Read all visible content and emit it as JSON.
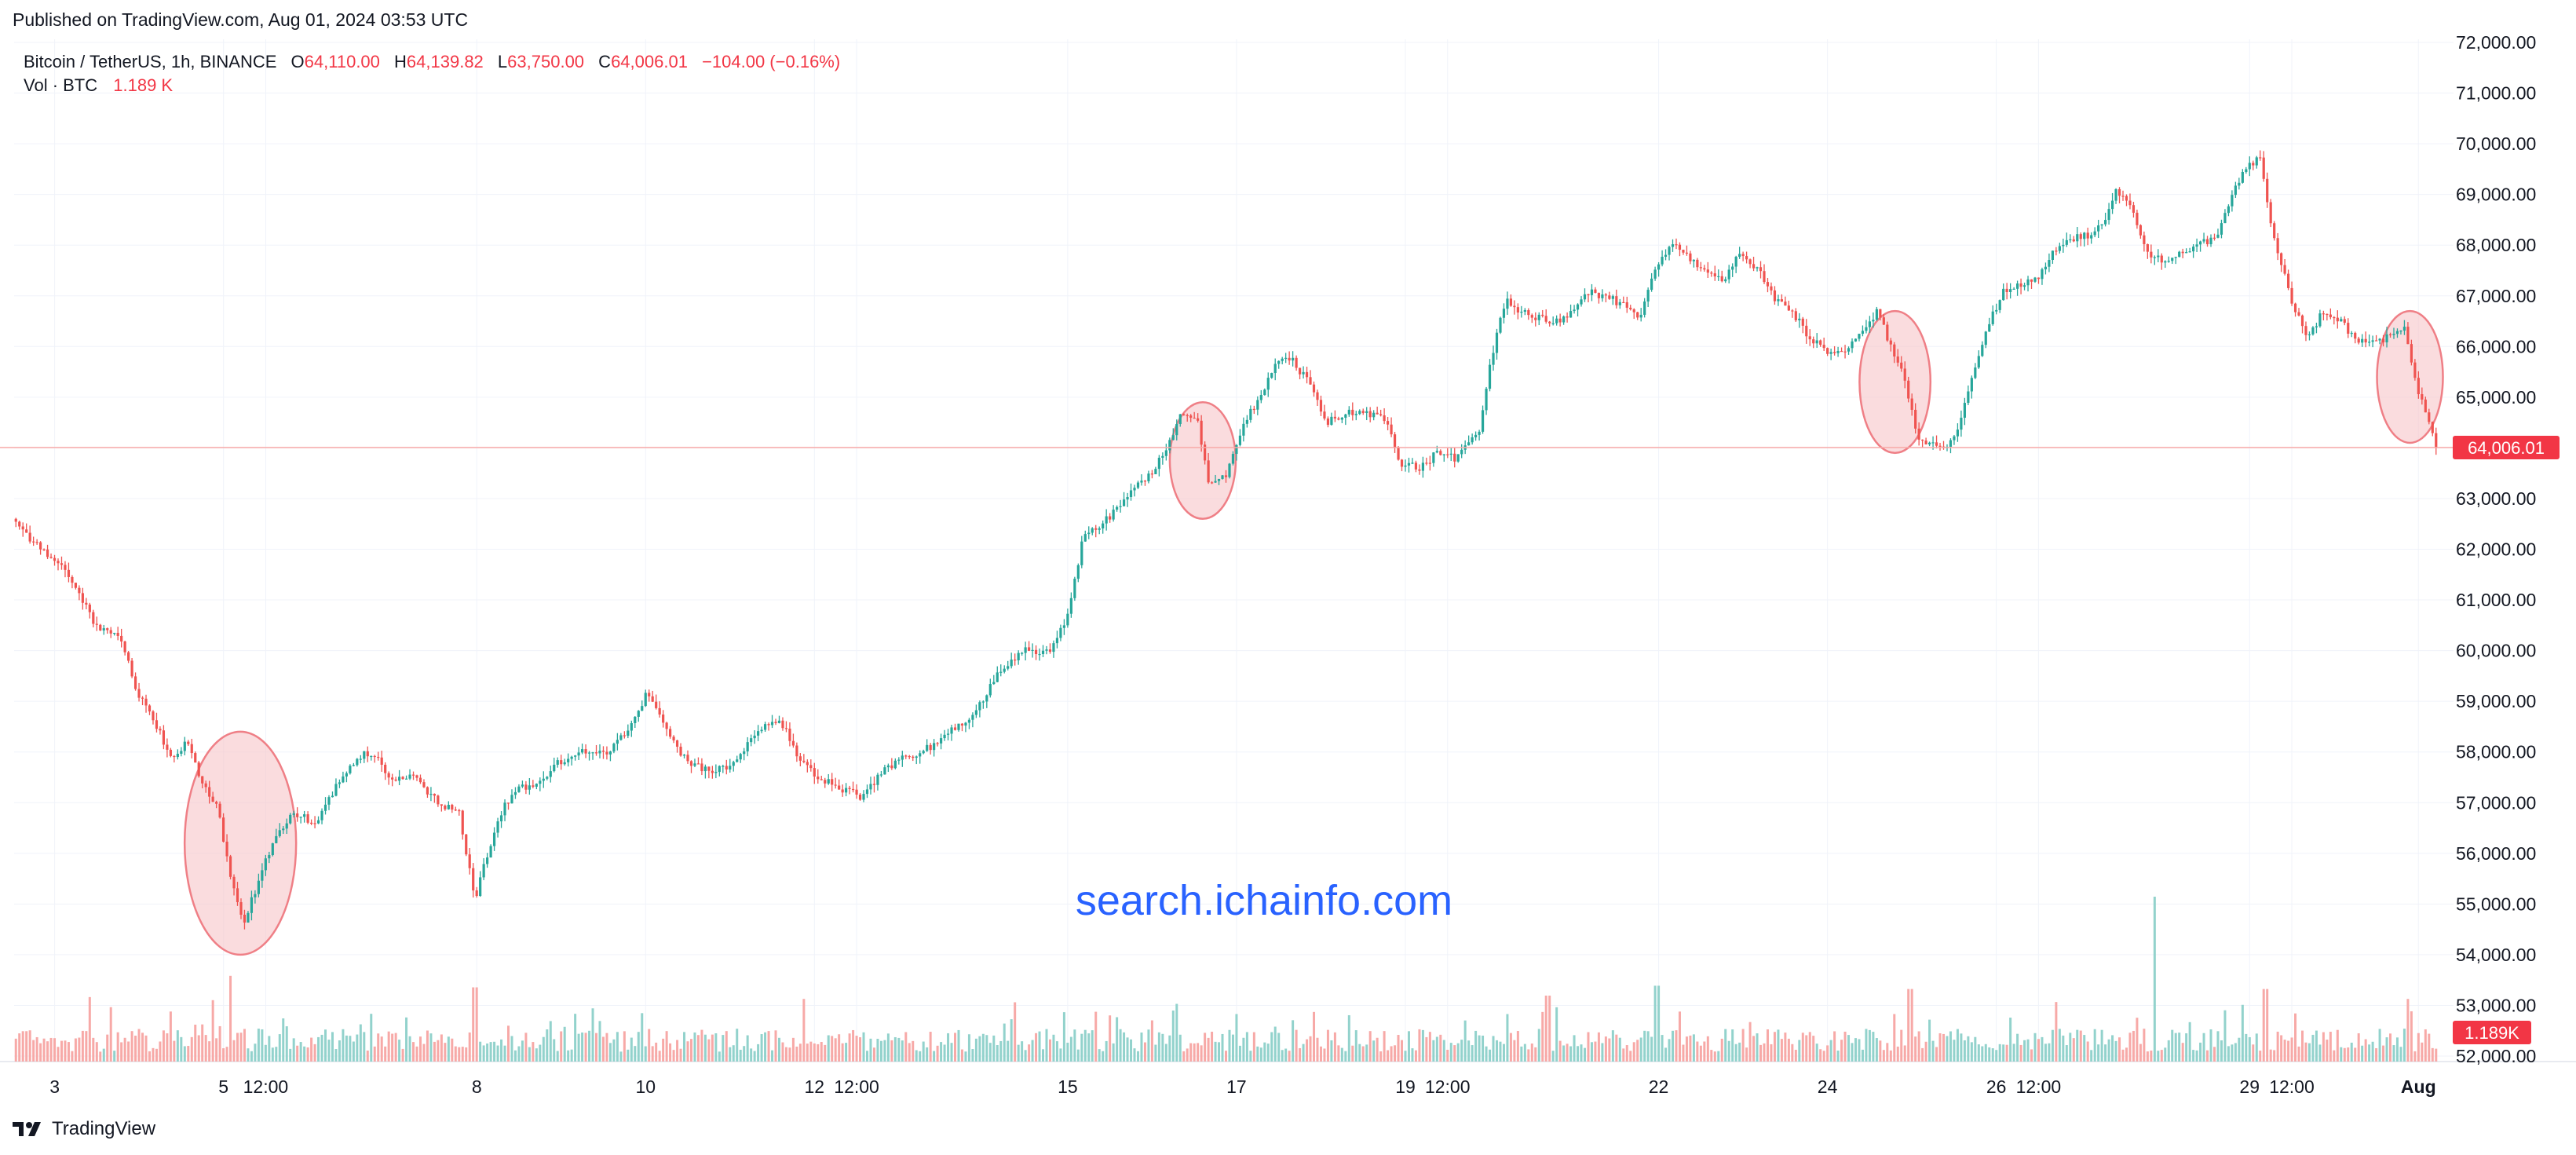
{
  "published": "Published on TradingView.com, Aug 01, 2024 03:53 UTC",
  "header": {
    "symbol": "Bitcoin / TetherUS, 1h, BINANCE",
    "o_label": "O",
    "o_value": "64,110.00",
    "h_label": "H",
    "h_value": "64,139.82",
    "l_label": "L",
    "l_value": "63,750.00",
    "c_label": "C",
    "c_value": "64,006.01",
    "change": "−104.00 (−0.16%)",
    "vol_label": "Vol · BTC",
    "vol_value": "1.189 K"
  },
  "watermark": "search.ichainfo.com",
  "footer": {
    "brand": "TradingView",
    "logo_icon": "tradingview-logo-icon"
  },
  "colors": {
    "up": "#26a69a",
    "down": "#ef5350",
    "vol_up": "#92d2cc",
    "vol_down": "#f7a9a7",
    "price_badge": "#f23645",
    "watermark": "#2962ff",
    "highlight": "#f7c5c8"
  },
  "chart_data": {
    "type": "candlestick",
    "symbol": "Bitcoin / TetherUS",
    "interval": "1h",
    "exchange": "BINANCE",
    "ylim": [
      52000,
      72000
    ],
    "y_ticks": [
      "52,000.00",
      "53,000.00",
      "54,000.00",
      "55,000.00",
      "56,000.00",
      "57,000.00",
      "58,000.00",
      "59,000.00",
      "60,000.00",
      "61,000.00",
      "62,000.00",
      "63,000.00",
      "64,000.00",
      "65,000.00",
      "66,000.00",
      "67,000.00",
      "68,000.00",
      "69,000.00",
      "70,000.00",
      "71,000.00",
      "72,000.00"
    ],
    "x_ticks": [
      {
        "label": "3",
        "t": 1.0
      },
      {
        "label": "5",
        "t": 3.0
      },
      {
        "label": "12:00",
        "t": 3.5
      },
      {
        "label": "8",
        "t": 6.0
      },
      {
        "label": "10",
        "t": 8.0
      },
      {
        "label": "12",
        "t": 10.0
      },
      {
        "label": "12:00",
        "t": 10.5
      },
      {
        "label": "15",
        "t": 13.0
      },
      {
        "label": "17",
        "t": 15.0
      },
      {
        "label": "19",
        "t": 17.0
      },
      {
        "label": "12:00",
        "t": 17.5
      },
      {
        "label": "22",
        "t": 20.0
      },
      {
        "label": "24",
        "t": 22.0
      },
      {
        "label": "26",
        "t": 24.0
      },
      {
        "label": "12:00",
        "t": 24.5
      },
      {
        "label": "29",
        "t": 27.0
      },
      {
        "label": "12:00",
        "t": 27.5
      },
      {
        "label": "Aug",
        "t": 29.0
      }
    ],
    "t_range": [
      0.52,
      29.23
    ],
    "t_unit": "days since Jul 2, 2024 00:00 UTC",
    "path": [
      [
        0.52,
        62600
      ],
      [
        0.8,
        62100
      ],
      [
        1.1,
        61700
      ],
      [
        1.3,
        61200
      ],
      [
        1.5,
        60500
      ],
      [
        1.8,
        60300
      ],
      [
        2.0,
        59200
      ],
      [
        2.2,
        58600
      ],
      [
        2.4,
        57900
      ],
      [
        2.6,
        58200
      ],
      [
        2.75,
        57500
      ],
      [
        2.95,
        56900
      ],
      [
        3.1,
        55600
      ],
      [
        3.25,
        54600
      ],
      [
        3.45,
        55500
      ],
      [
        3.6,
        56200
      ],
      [
        3.85,
        56800
      ],
      [
        4.1,
        56600
      ],
      [
        4.35,
        57300
      ],
      [
        4.6,
        57900
      ],
      [
        4.8,
        58000
      ],
      [
        5.0,
        57500
      ],
      [
        5.3,
        57500
      ],
      [
        5.6,
        56900
      ],
      [
        5.8,
        56900
      ],
      [
        6.0,
        55100
      ],
      [
        6.1,
        55700
      ],
      [
        6.3,
        56800
      ],
      [
        6.5,
        57300
      ],
      [
        6.7,
        57300
      ],
      [
        7.0,
        57800
      ],
      [
        7.3,
        58000
      ],
      [
        7.6,
        58000
      ],
      [
        7.8,
        58400
      ],
      [
        8.05,
        59200
      ],
      [
        8.3,
        58400
      ],
      [
        8.5,
        57800
      ],
      [
        8.8,
        57600
      ],
      [
        9.1,
        57800
      ],
      [
        9.3,
        58300
      ],
      [
        9.6,
        58700
      ],
      [
        9.8,
        58000
      ],
      [
        10.0,
        57600
      ],
      [
        10.3,
        57300
      ],
      [
        10.6,
        57100
      ],
      [
        10.8,
        57600
      ],
      [
        11.1,
        57900
      ],
      [
        11.4,
        58100
      ],
      [
        11.7,
        58500
      ],
      [
        11.9,
        58700
      ],
      [
        12.2,
        59600
      ],
      [
        12.5,
        60000
      ],
      [
        12.8,
        60000
      ],
      [
        13.0,
        60600
      ],
      [
        13.2,
        62200
      ],
      [
        13.5,
        62600
      ],
      [
        13.8,
        63200
      ],
      [
        14.0,
        63500
      ],
      [
        14.2,
        64000
      ],
      [
        14.35,
        64700
      ],
      [
        14.55,
        64600
      ],
      [
        14.7,
        63200
      ],
      [
        14.9,
        63500
      ],
      [
        15.1,
        64500
      ],
      [
        15.3,
        65000
      ],
      [
        15.5,
        65800
      ],
      [
        15.7,
        65700
      ],
      [
        15.9,
        65200
      ],
      [
        16.1,
        64500
      ],
      [
        16.3,
        64700
      ],
      [
        16.5,
        64700
      ],
      [
        16.8,
        64600
      ],
      [
        16.95,
        63700
      ],
      [
        17.2,
        63600
      ],
      [
        17.4,
        63900
      ],
      [
        17.6,
        63800
      ],
      [
        17.9,
        64300
      ],
      [
        18.0,
        65500
      ],
      [
        18.2,
        66900
      ],
      [
        18.5,
        66600
      ],
      [
        18.8,
        66500
      ],
      [
        19.0,
        66700
      ],
      [
        19.2,
        67100
      ],
      [
        19.5,
        66900
      ],
      [
        19.8,
        66600
      ],
      [
        20.0,
        67600
      ],
      [
        20.2,
        68000
      ],
      [
        20.4,
        67700
      ],
      [
        20.6,
        67400
      ],
      [
        20.8,
        67300
      ],
      [
        21.0,
        67900
      ],
      [
        21.2,
        67500
      ],
      [
        21.4,
        66900
      ],
      [
        21.6,
        66700
      ],
      [
        21.8,
        66200
      ],
      [
        22.0,
        65900
      ],
      [
        22.2,
        65900
      ],
      [
        22.4,
        66200
      ],
      [
        22.6,
        66700
      ],
      [
        22.75,
        66100
      ],
      [
        22.9,
        65500
      ],
      [
        23.1,
        64200
      ],
      [
        23.3,
        64000
      ],
      [
        23.5,
        64100
      ],
      [
        23.7,
        65200
      ],
      [
        23.9,
        66300
      ],
      [
        24.1,
        67100
      ],
      [
        24.3,
        67200
      ],
      [
        24.5,
        67300
      ],
      [
        24.7,
        67900
      ],
      [
        24.9,
        68100
      ],
      [
        25.1,
        68200
      ],
      [
        25.3,
        68400
      ],
      [
        25.45,
        69100
      ],
      [
        25.6,
        68800
      ],
      [
        25.8,
        67800
      ],
      [
        26.0,
        67700
      ],
      [
        26.2,
        67800
      ],
      [
        26.4,
        68000
      ],
      [
        26.6,
        68100
      ],
      [
        26.8,
        68900
      ],
      [
        26.95,
        69500
      ],
      [
        27.15,
        69700
      ],
      [
        27.3,
        68200
      ],
      [
        27.5,
        67000
      ],
      [
        27.7,
        66200
      ],
      [
        27.9,
        66700
      ],
      [
        28.1,
        66500
      ],
      [
        28.3,
        66100
      ],
      [
        28.5,
        66100
      ],
      [
        28.7,
        66200
      ],
      [
        28.85,
        66400
      ],
      [
        29.0,
        65200
      ],
      [
        29.1,
        64800
      ],
      [
        29.23,
        64006
      ]
    ],
    "volume_spikes": [
      {
        "t": 3.1,
        "vol": 52
      },
      {
        "t": 6.0,
        "vol": 45
      },
      {
        "t": 9.9,
        "vol": 38
      },
      {
        "t": 14.3,
        "vol": 35
      },
      {
        "t": 18.7,
        "vol": 40
      },
      {
        "t": 20.0,
        "vol": 46
      },
      {
        "t": 23.0,
        "vol": 44
      },
      {
        "t": 25.9,
        "vol": 100
      },
      {
        "t": 27.2,
        "vol": 44
      },
      {
        "t": 28.9,
        "vol": 38
      }
    ],
    "last_price": 64006.01,
    "last_price_label": "64,006.01",
    "last_volume_label": "1.189K",
    "highlighted_ellipses": [
      {
        "t_center": 3.2,
        "price_low": 54000,
        "price_high": 58400
      },
      {
        "t_center": 14.6,
        "price_low": 62600,
        "price_high": 64900
      },
      {
        "t_center": 22.8,
        "price_low": 63900,
        "price_high": 66700
      },
      {
        "t_center": 28.9,
        "price_low": 64100,
        "price_high": 66700
      }
    ]
  }
}
